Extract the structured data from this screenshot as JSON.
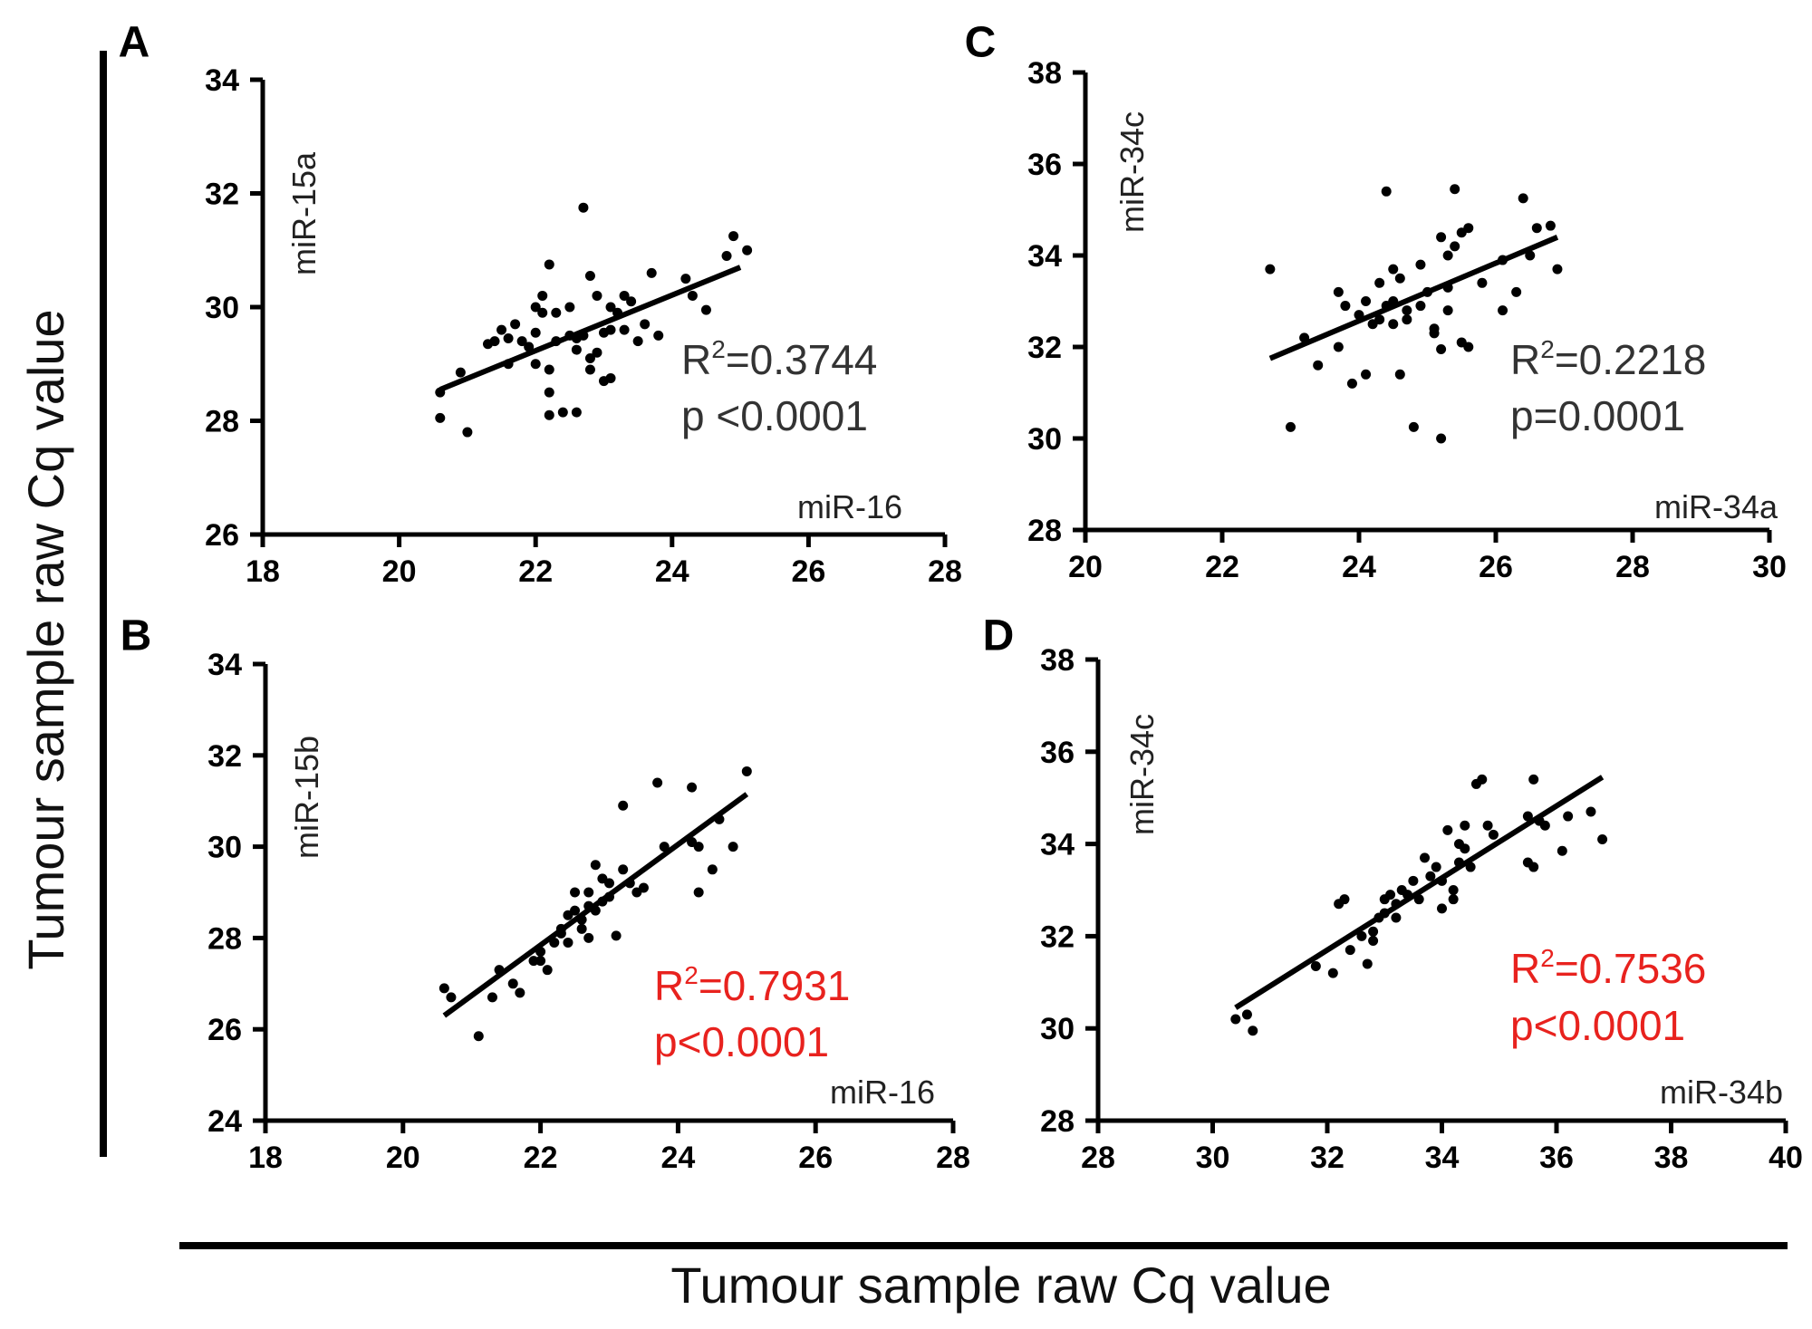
{
  "shared": {
    "ylabel": "Tumour sample raw Cq value",
    "xlabel": "Tumour sample raw Cq value"
  },
  "chart_data": [
    {
      "panel": "A",
      "type": "scatter",
      "xlabel": "miR-16",
      "ylabel": "miR-15a",
      "xlim": [
        18,
        28
      ],
      "ylim": [
        26,
        34
      ],
      "xticks": [
        "18",
        "20",
        "22",
        "24",
        "26",
        "28"
      ],
      "yticks": [
        "26",
        "28",
        "30",
        "32",
        "34"
      ],
      "r2_label": "R",
      "r2_sup": "2",
      "r2_value": "=0.3744",
      "p_label": "p <0.0001",
      "stat_color": "#333333",
      "fit": [
        [
          20.6,
          28.55
        ],
        [
          25.0,
          30.7
        ]
      ],
      "points": [
        [
          20.6,
          28.5
        ],
        [
          20.6,
          28.05
        ],
        [
          20.9,
          28.85
        ],
        [
          21.0,
          27.8
        ],
        [
          21.3,
          29.35
        ],
        [
          21.4,
          29.4
        ],
        [
          21.5,
          29.6
        ],
        [
          21.6,
          29.0
        ],
        [
          21.7,
          29.7
        ],
        [
          21.8,
          29.4
        ],
        [
          21.9,
          29.3
        ],
        [
          22.0,
          29.55
        ],
        [
          22.0,
          29.0
        ],
        [
          22.1,
          30.2
        ],
        [
          22.1,
          29.9
        ],
        [
          22.2,
          30.75
        ],
        [
          22.2,
          28.9
        ],
        [
          22.2,
          28.5
        ],
        [
          22.2,
          28.1
        ],
        [
          22.3,
          29.9
        ],
        [
          22.3,
          29.4
        ],
        [
          22.4,
          28.15
        ],
        [
          22.5,
          29.5
        ],
        [
          22.5,
          30.0
        ],
        [
          22.6,
          28.15
        ],
        [
          22.6,
          29.25
        ],
        [
          22.7,
          31.75
        ],
        [
          22.7,
          29.5
        ],
        [
          22.8,
          29.1
        ],
        [
          22.8,
          28.9
        ],
        [
          22.8,
          30.55
        ],
        [
          22.9,
          30.2
        ],
        [
          22.9,
          29.2
        ],
        [
          23.0,
          28.7
        ],
        [
          23.1,
          30.0
        ],
        [
          23.1,
          28.75
        ],
        [
          23.2,
          29.9
        ],
        [
          23.3,
          30.2
        ],
        [
          23.3,
          29.6
        ],
        [
          23.4,
          30.1
        ],
        [
          23.5,
          29.4
        ],
        [
          23.7,
          30.6
        ],
        [
          23.8,
          29.5
        ],
        [
          23.6,
          29.7
        ],
        [
          23.0,
          29.55
        ],
        [
          24.2,
          30.5
        ],
        [
          24.3,
          30.2
        ],
        [
          24.5,
          29.95
        ],
        [
          24.8,
          30.9
        ],
        [
          24.9,
          31.25
        ],
        [
          25.1,
          31.0
        ],
        [
          22.6,
          29.45
        ],
        [
          23.1,
          29.6
        ],
        [
          21.6,
          29.45
        ],
        [
          22.0,
          30.0
        ]
      ]
    },
    {
      "panel": "B",
      "type": "scatter",
      "xlabel": "miR-16",
      "ylabel": "miR-15b",
      "xlim": [
        18,
        28
      ],
      "ylim": [
        24,
        34
      ],
      "xticks": [
        "18",
        "20",
        "22",
        "24",
        "26",
        "28"
      ],
      "yticks": [
        "24",
        "26",
        "28",
        "30",
        "32",
        "34"
      ],
      "r2_label": "R",
      "r2_sup": "2",
      "r2_value": "=0.7931",
      "p_label": "p<0.0001",
      "stat_color": "#e8221e",
      "fit": [
        [
          20.6,
          26.3
        ],
        [
          25.0,
          31.15
        ]
      ],
      "points": [
        [
          20.6,
          26.9
        ],
        [
          20.7,
          26.7
        ],
        [
          21.1,
          25.85
        ],
        [
          21.3,
          26.7
        ],
        [
          21.4,
          27.3
        ],
        [
          21.6,
          27.0
        ],
        [
          21.7,
          26.8
        ],
        [
          21.9,
          27.5
        ],
        [
          22.0,
          27.7
        ],
        [
          22.1,
          27.3
        ],
        [
          22.2,
          27.9
        ],
        [
          22.3,
          28.1
        ],
        [
          22.4,
          28.5
        ],
        [
          22.4,
          27.9
        ],
        [
          22.5,
          29.0
        ],
        [
          22.6,
          28.4
        ],
        [
          22.6,
          28.2
        ],
        [
          22.7,
          28.7
        ],
        [
          22.7,
          28.0
        ],
        [
          22.8,
          29.6
        ],
        [
          22.8,
          28.6
        ],
        [
          22.9,
          28.8
        ],
        [
          22.9,
          29.3
        ],
        [
          23.0,
          28.9
        ],
        [
          23.1,
          28.05
        ],
        [
          23.2,
          30.9
        ],
        [
          23.2,
          29.5
        ],
        [
          23.3,
          29.2
        ],
        [
          23.4,
          29.0
        ],
        [
          23.5,
          29.1
        ],
        [
          23.7,
          31.4
        ],
        [
          23.8,
          30.0
        ],
        [
          24.2,
          31.3
        ],
        [
          24.3,
          30.0
        ],
        [
          24.3,
          29.0
        ],
        [
          24.5,
          29.5
        ],
        [
          24.6,
          30.6
        ],
        [
          24.8,
          30.0
        ],
        [
          25.0,
          31.65
        ],
        [
          22.0,
          27.5
        ],
        [
          22.3,
          28.2
        ],
        [
          22.5,
          28.6
        ],
        [
          22.7,
          29.0
        ],
        [
          23.0,
          29.2
        ],
        [
          24.2,
          30.1
        ]
      ]
    },
    {
      "panel": "C",
      "type": "scatter",
      "xlabel": "miR-34a",
      "ylabel": "miR-34c",
      "xlim": [
        20,
        30
      ],
      "ylim": [
        28,
        38
      ],
      "xticks": [
        "20",
        "22",
        "24",
        "26",
        "28",
        "30"
      ],
      "yticks": [
        "28",
        "30",
        "32",
        "34",
        "36",
        "38"
      ],
      "r2_label": "R",
      "r2_sup": "2",
      "r2_value": "=0.2218",
      "p_label": "p=0.0001",
      "stat_color": "#333333",
      "fit": [
        [
          22.7,
          31.75
        ],
        [
          26.9,
          34.4
        ]
      ],
      "points": [
        [
          22.7,
          33.7
        ],
        [
          23.0,
          30.25
        ],
        [
          23.2,
          32.2
        ],
        [
          23.4,
          31.6
        ],
        [
          23.7,
          33.2
        ],
        [
          23.7,
          32.0
        ],
        [
          23.8,
          32.9
        ],
        [
          23.9,
          31.2
        ],
        [
          24.0,
          32.7
        ],
        [
          24.1,
          33.0
        ],
        [
          24.1,
          31.4
        ],
        [
          24.3,
          33.4
        ],
        [
          24.3,
          32.6
        ],
        [
          24.4,
          35.4
        ],
        [
          24.4,
          32.9
        ],
        [
          24.5,
          33.7
        ],
        [
          24.5,
          33.0
        ],
        [
          24.5,
          32.5
        ],
        [
          24.6,
          31.4
        ],
        [
          24.6,
          33.5
        ],
        [
          24.7,
          32.8
        ],
        [
          24.7,
          32.6
        ],
        [
          24.8,
          30.25
        ],
        [
          24.9,
          33.8
        ],
        [
          24.9,
          32.9
        ],
        [
          25.0,
          33.2
        ],
        [
          25.1,
          32.4
        ],
        [
          25.1,
          32.3
        ],
        [
          25.2,
          34.4
        ],
        [
          25.2,
          31.95
        ],
        [
          25.2,
          30.0
        ],
        [
          25.3,
          33.3
        ],
        [
          25.3,
          32.8
        ],
        [
          25.3,
          34.0
        ],
        [
          25.4,
          35.45
        ],
        [
          25.4,
          34.2
        ],
        [
          25.5,
          34.5
        ],
        [
          25.6,
          32.0
        ],
        [
          25.6,
          34.6
        ],
        [
          25.8,
          33.4
        ],
        [
          26.1,
          33.9
        ],
        [
          26.1,
          32.8
        ],
        [
          26.3,
          33.2
        ],
        [
          26.4,
          35.25
        ],
        [
          26.5,
          34.0
        ],
        [
          26.6,
          34.6
        ],
        [
          26.8,
          34.65
        ],
        [
          26.9,
          33.7
        ],
        [
          25.5,
          32.1
        ],
        [
          24.2,
          32.5
        ]
      ]
    },
    {
      "panel": "D",
      "type": "scatter",
      "xlabel": "miR-34b",
      "ylabel": "miR-34c",
      "xlim": [
        28,
        40
      ],
      "ylim": [
        28,
        38
      ],
      "xticks": [
        "28",
        "30",
        "32",
        "34",
        "36",
        "38",
        "40"
      ],
      "yticks": [
        "28",
        "30",
        "32",
        "34",
        "36",
        "38"
      ],
      "r2_label": "R",
      "r2_sup": "2",
      "r2_value": "=0.7536",
      "p_label": "p<0.0001",
      "stat_color": "#e8221e",
      "fit": [
        [
          30.4,
          30.45
        ],
        [
          36.8,
          35.45
        ]
      ],
      "points": [
        [
          30.4,
          30.2
        ],
        [
          30.6,
          30.3
        ],
        [
          30.7,
          29.95
        ],
        [
          31.8,
          31.35
        ],
        [
          32.1,
          31.2
        ],
        [
          32.2,
          32.7
        ],
        [
          32.3,
          32.8
        ],
        [
          32.4,
          31.7
        ],
        [
          32.6,
          32.0
        ],
        [
          32.7,
          31.4
        ],
        [
          32.8,
          31.9
        ],
        [
          32.8,
          32.1
        ],
        [
          32.9,
          32.4
        ],
        [
          33.0,
          32.8
        ],
        [
          33.0,
          32.5
        ],
        [
          33.1,
          32.9
        ],
        [
          33.2,
          32.7
        ],
        [
          33.3,
          33.0
        ],
        [
          33.4,
          32.9
        ],
        [
          33.5,
          33.2
        ],
        [
          33.6,
          32.8
        ],
        [
          33.7,
          33.7
        ],
        [
          33.8,
          33.3
        ],
        [
          33.9,
          33.5
        ],
        [
          34.0,
          33.2
        ],
        [
          34.0,
          32.6
        ],
        [
          34.1,
          34.3
        ],
        [
          34.2,
          33.0
        ],
        [
          34.2,
          32.8
        ],
        [
          34.3,
          33.6
        ],
        [
          34.4,
          34.4
        ],
        [
          34.4,
          33.9
        ],
        [
          34.5,
          33.5
        ],
        [
          34.6,
          35.3
        ],
        [
          34.7,
          35.4
        ],
        [
          34.8,
          34.4
        ],
        [
          34.9,
          34.2
        ],
        [
          35.5,
          34.6
        ],
        [
          35.5,
          33.6
        ],
        [
          35.6,
          33.5
        ],
        [
          35.7,
          34.5
        ],
        [
          35.8,
          34.4
        ],
        [
          36.1,
          33.85
        ],
        [
          36.2,
          34.6
        ],
        [
          36.6,
          34.7
        ],
        [
          36.8,
          34.1
        ],
        [
          33.2,
          32.4
        ],
        [
          34.3,
          34.0
        ],
        [
          35.6,
          35.4
        ]
      ]
    }
  ]
}
